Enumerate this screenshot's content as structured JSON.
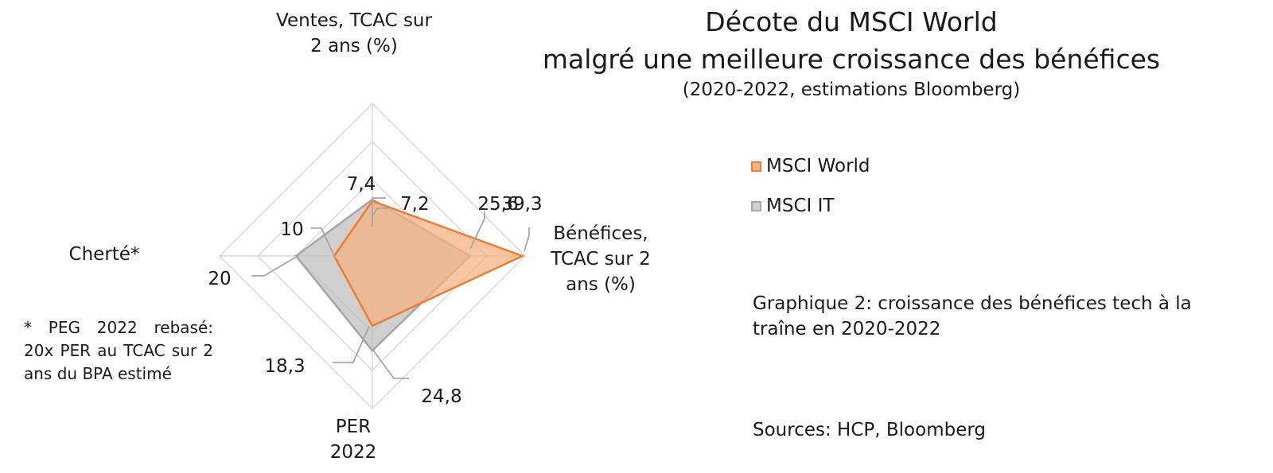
{
  "title_line1": "Décote du MSCI World",
  "title_line2": "malgré une meilleure croissance des bénéfices",
  "subtitle": "(2020-2022, estimations Bloomberg)",
  "caption": "Graphique 2: croissance des bénéfices tech à la traîne en 2020-2022",
  "source": "Sources: HCP, Bloomberg",
  "footnote": "* PEG 2022 rebasé: 20x PER au TCAC sur 2 ans du BPA estimé",
  "colors": {
    "msci_world": "#F4B183",
    "msci_world_line": "#ED7D31",
    "msci_it": "#BFBFBF",
    "msci_it_line": "#A6A6A6",
    "grid": "#D9D9D9"
  },
  "chart_data": {
    "type": "radar",
    "axes": [
      {
        "label_lines": [
          "Ventes, TCAC sur",
          "2 ans (%)"
        ],
        "max": 20
      },
      {
        "label_lines": [
          "Bénéfices,",
          "TCAC sur 2",
          "ans (%)"
        ],
        "max": 40
      },
      {
        "label_lines": [
          "PER",
          "2022"
        ],
        "max": 40
      },
      {
        "label_lines": [
          "Cherté*"
        ],
        "max": 40
      }
    ],
    "rings": 4,
    "series": [
      {
        "name": "MSCI World",
        "values": [
          7.2,
          39.3,
          18.3,
          10
        ],
        "value_labels": [
          "7,2",
          "39,3",
          "18,3",
          "10"
        ]
      },
      {
        "name": "MSCI IT",
        "values": [
          7.4,
          25.6,
          24.8,
          20
        ],
        "value_labels": [
          "7,4",
          "25,6",
          "24,8",
          "20"
        ]
      }
    ]
  }
}
